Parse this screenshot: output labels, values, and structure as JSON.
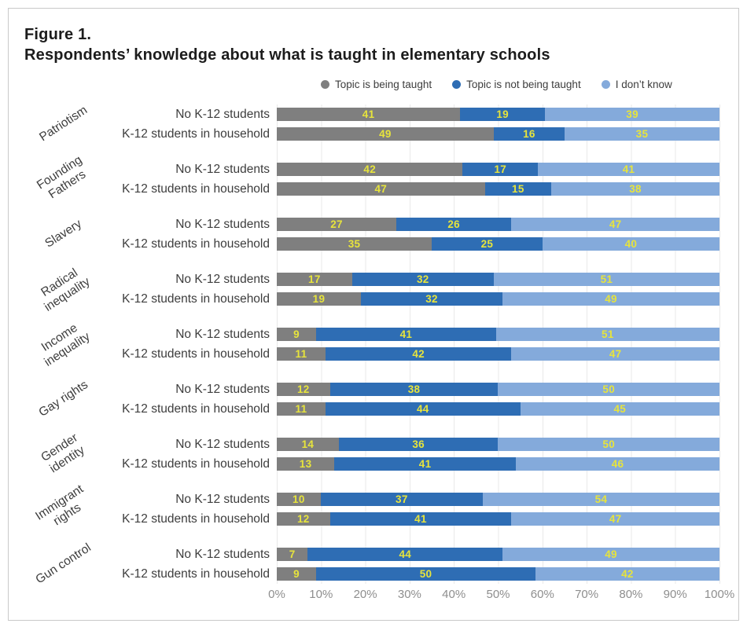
{
  "figure": {
    "label": "Figure 1.",
    "title": "Respondents’ knowledge about what is taught in elementary schools"
  },
  "legend": [
    {
      "label": "Topic is being taught",
      "color": "#7f7f7f"
    },
    {
      "label": "Topic is not being taught",
      "color": "#2e6db4"
    },
    {
      "label": "I don’t know",
      "color": "#84aadb"
    }
  ],
  "chart_data": {
    "type": "bar",
    "orientation": "horizontal",
    "stacked": true,
    "grid": true,
    "legend_position": "top",
    "xlim": [
      0,
      100
    ],
    "x_ticks": [
      "0%",
      "10%",
      "20%",
      "30%",
      "40%",
      "50%",
      "60%",
      "70%",
      "80%",
      "90%",
      "100%"
    ],
    "row_labels": [
      "No K-12 students",
      "K-12 students in household"
    ],
    "series_names": [
      "Topic is being taught",
      "Topic is not being taught",
      "I don't know"
    ],
    "series_keys": [
      "taught",
      "not-taught",
      "dont-know"
    ],
    "series_colors": [
      "#7f7f7f",
      "#2e6db4",
      "#84aadb"
    ],
    "value_label_color": "#e7e43c",
    "groups": [
      {
        "topic": "Patriotism",
        "rows": [
          [
            41,
            19,
            39
          ],
          [
            49,
            16,
            35
          ]
        ]
      },
      {
        "topic": "Founding\nFathers",
        "rows": [
          [
            42,
            17,
            41
          ],
          [
            47,
            15,
            38
          ]
        ]
      },
      {
        "topic": "Slavery",
        "rows": [
          [
            27,
            26,
            47
          ],
          [
            35,
            25,
            40
          ]
        ]
      },
      {
        "topic": "Radical\ninequality",
        "rows": [
          [
            17,
            32,
            51
          ],
          [
            19,
            32,
            49
          ]
        ]
      },
      {
        "topic": "Income\ninequality",
        "rows": [
          [
            9,
            41,
            51
          ],
          [
            11,
            42,
            47
          ]
        ]
      },
      {
        "topic": "Gay rights",
        "rows": [
          [
            12,
            38,
            50
          ],
          [
            11,
            44,
            45
          ]
        ]
      },
      {
        "topic": "Gender\nidentity",
        "rows": [
          [
            14,
            36,
            50
          ],
          [
            13,
            41,
            46
          ]
        ]
      },
      {
        "topic": "Immigrant\nrights",
        "rows": [
          [
            10,
            37,
            54
          ],
          [
            12,
            41,
            47
          ]
        ]
      },
      {
        "topic": "Gun control",
        "rows": [
          [
            7,
            44,
            49
          ],
          [
            9,
            50,
            42
          ]
        ]
      }
    ]
  }
}
